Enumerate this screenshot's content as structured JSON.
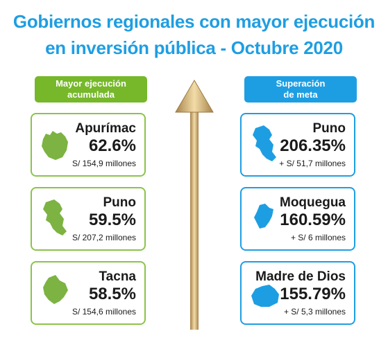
{
  "title": {
    "line1": "Gobiernos regionales con mayor ejecución",
    "line2": "en inversión pública - Octubre 2020"
  },
  "colors": {
    "title": "#1e9ee2",
    "green": "#76b82a",
    "green_border": "#8bc34a",
    "blue": "#1e9ee2",
    "arrow": "#c9a86a"
  },
  "left_column": {
    "header_line1": "Mayor ejecución",
    "header_line2": "acumulada",
    "items": [
      {
        "region": "Apurímac",
        "percent": "62.6%",
        "detail": "S/ 154,9 millones",
        "icon": "apurimac-map-icon"
      },
      {
        "region": "Puno",
        "percent": "59.5%",
        "detail": "S/ 207,2 millones",
        "icon": "puno-map-icon"
      },
      {
        "region": "Tacna",
        "percent": "58.5%",
        "detail": "S/ 154,6 millones",
        "icon": "tacna-map-icon"
      }
    ]
  },
  "right_column": {
    "header_line1": "Superación",
    "header_line2": "de meta",
    "items": [
      {
        "region": "Puno",
        "percent": "206.35%",
        "detail": "+ S/ 51,7 millones",
        "icon": "puno-map-icon"
      },
      {
        "region": "Moquegua",
        "percent": "160.59%",
        "detail": "+ S/ 6 millones",
        "icon": "moquegua-map-icon"
      },
      {
        "region": "Madre de Dios",
        "percent": "155.79%",
        "detail": "+ S/ 5,3 millones",
        "icon": "madre-de-dios-map-icon"
      }
    ]
  },
  "arrow_icon": "up-arrow-icon"
}
